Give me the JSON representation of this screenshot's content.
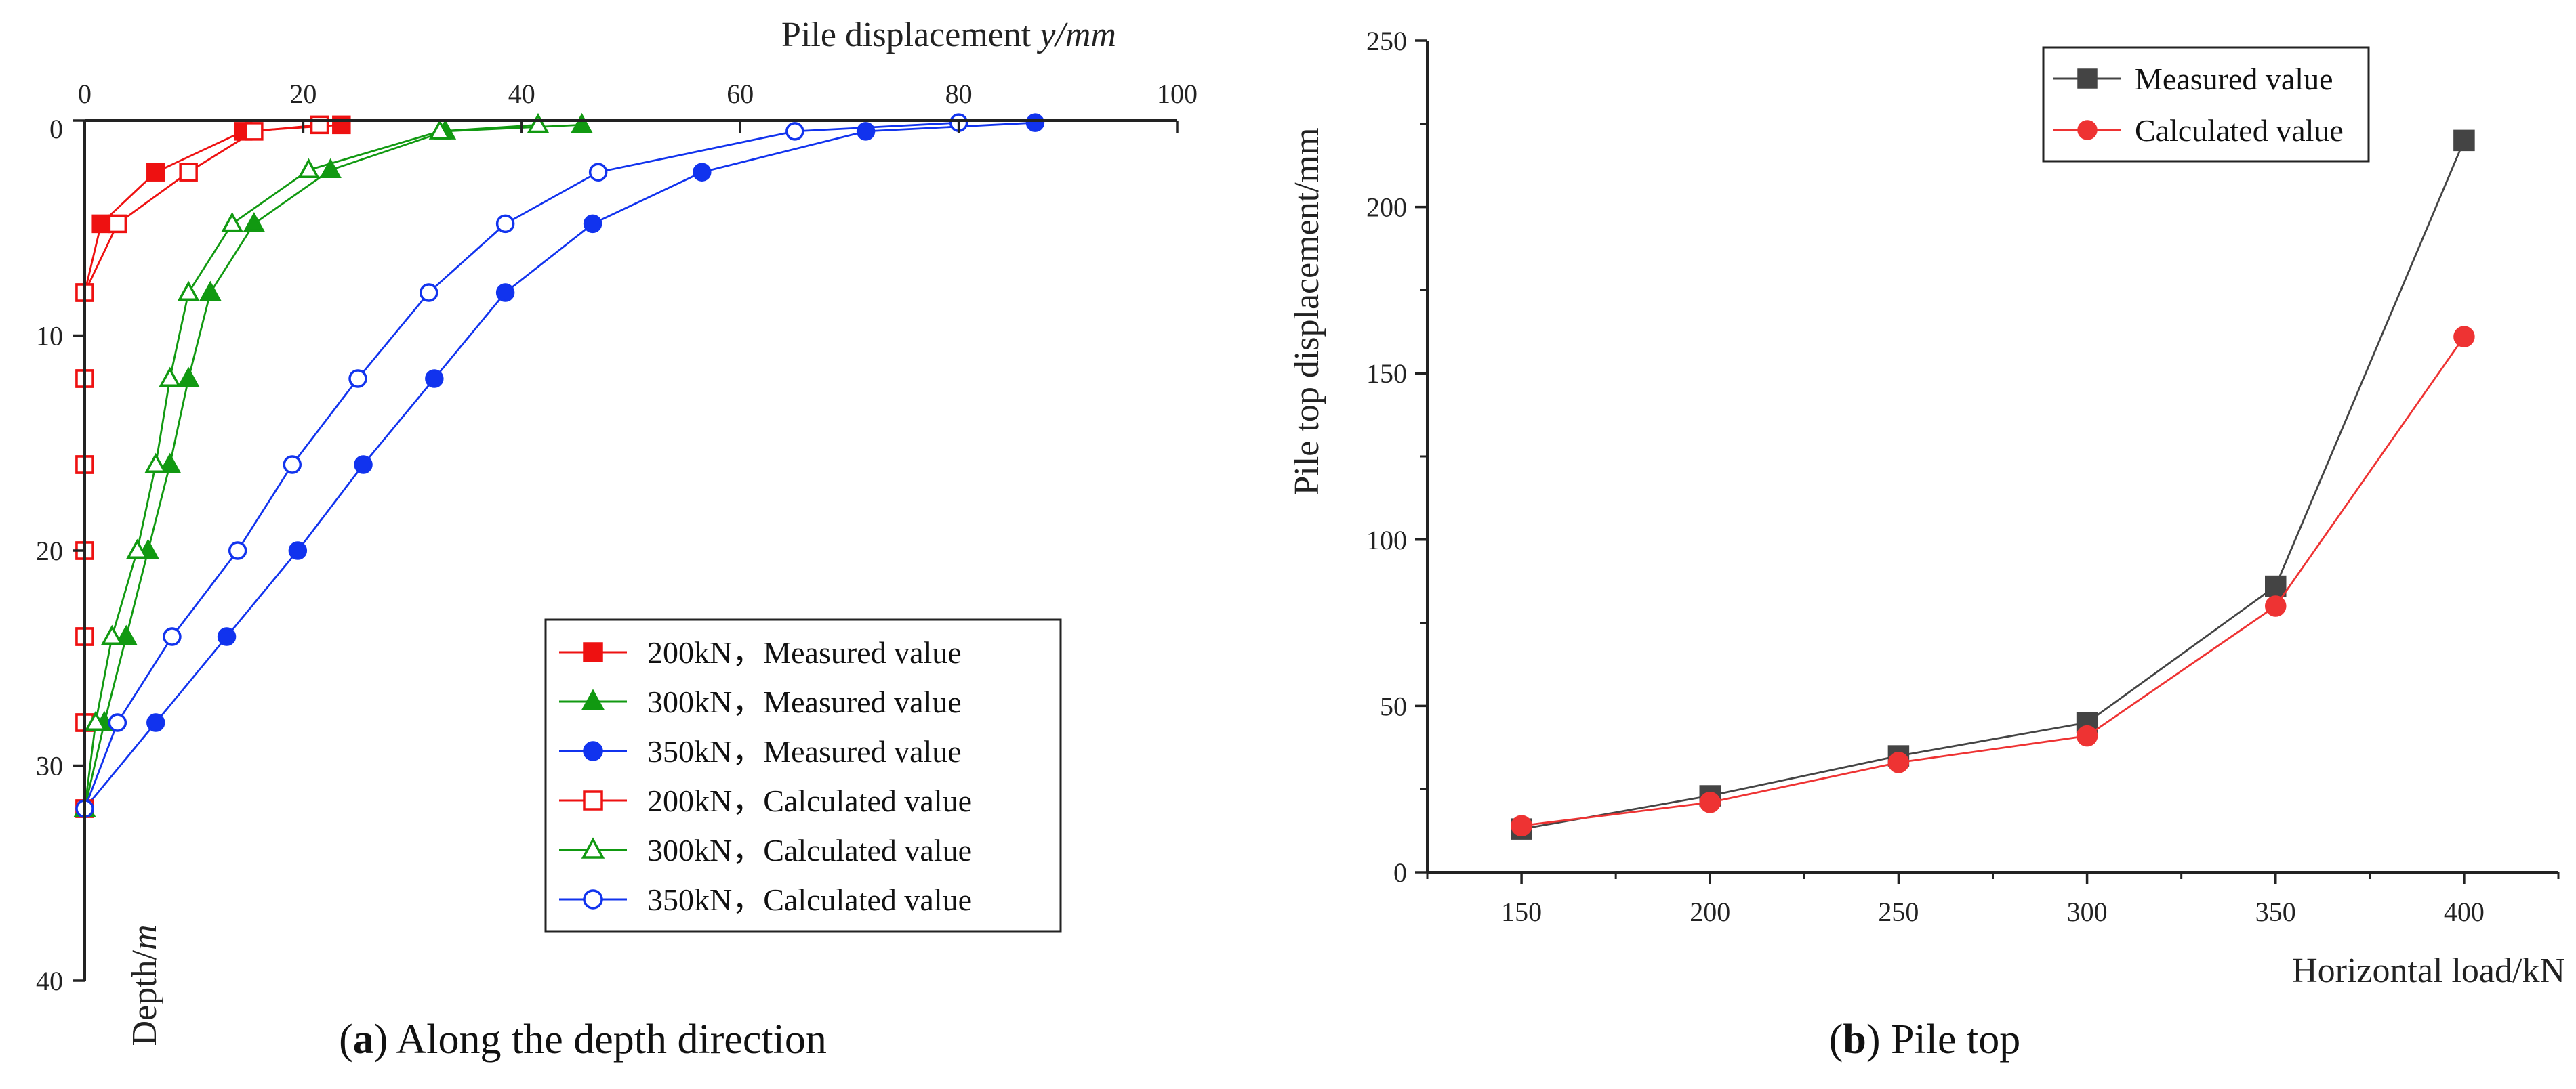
{
  "chart_data": [
    {
      "type": "line",
      "panel": "a",
      "caption": {
        "label": "a",
        "text": "Along the depth direction"
      },
      "title": "",
      "xlabel": "Pile displacement ",
      "xlabel_var": "y",
      "xlabel_unit": "/mm",
      "ylabel": "Depth/",
      "ylabel_unit": "m",
      "xlim": [
        0,
        100
      ],
      "ylim": [
        0,
        40
      ],
      "x_axis_position": "top",
      "y_inverted": true,
      "xticks": [
        0,
        20,
        40,
        60,
        80,
        100
      ],
      "yticks": [
        0,
        10,
        20,
        30,
        40
      ],
      "legend_position": "bottom-right",
      "series": [
        {
          "name": "200kN，Measured value",
          "color": "#ee1111",
          "marker": "square",
          "filled": true,
          "points": [
            [
              23.5,
              0.2
            ],
            [
              14.5,
              0.5
            ],
            [
              6.5,
              2.4
            ],
            [
              1.5,
              4.8
            ],
            [
              0,
              8
            ],
            [
              0,
              12
            ],
            [
              0,
              16
            ],
            [
              0,
              20
            ],
            [
              0,
              24
            ],
            [
              0,
              28
            ],
            [
              0,
              32
            ]
          ]
        },
        {
          "name": "300kN，Measured value",
          "color": "#119911",
          "marker": "triangle",
          "filled": true,
          "points": [
            [
              45.5,
              0.2
            ],
            [
              33,
              0.5
            ],
            [
              22.5,
              2.3
            ],
            [
              15.5,
              4.8
            ],
            [
              11.5,
              8
            ],
            [
              9.5,
              12
            ],
            [
              7.8,
              16
            ],
            [
              5.8,
              20
            ],
            [
              3.8,
              24
            ],
            [
              1.8,
              28
            ],
            [
              0,
              32
            ]
          ]
        },
        {
          "name": "350kN，Measured value",
          "color": "#1133ee",
          "marker": "circle",
          "filled": true,
          "points": [
            [
              87,
              0.1
            ],
            [
              71.5,
              0.5
            ],
            [
              56.5,
              2.4
            ],
            [
              46.5,
              4.8
            ],
            [
              38.5,
              8
            ],
            [
              32,
              12
            ],
            [
              25.5,
              16
            ],
            [
              19.5,
              20
            ],
            [
              13,
              24
            ],
            [
              6.5,
              28
            ],
            [
              0,
              32
            ]
          ]
        },
        {
          "name": "200kN，Calculated value",
          "color": "#ee1111",
          "marker": "square",
          "filled": false,
          "points": [
            [
              21.5,
              0.2
            ],
            [
              15.5,
              0.5
            ],
            [
              9.5,
              2.4
            ],
            [
              3,
              4.8
            ],
            [
              0,
              8
            ],
            [
              0,
              12
            ],
            [
              0,
              16
            ],
            [
              0,
              20
            ],
            [
              0,
              24
            ],
            [
              0,
              28
            ],
            [
              0,
              32
            ]
          ]
        },
        {
          "name": "300kN，Calculated value",
          "color": "#119911",
          "marker": "triangle",
          "filled": false,
          "points": [
            [
              41.5,
              0.2
            ],
            [
              32.5,
              0.5
            ],
            [
              20.5,
              2.3
            ],
            [
              13.5,
              4.8
            ],
            [
              9.5,
              8
            ],
            [
              7.8,
              12
            ],
            [
              6.5,
              16
            ],
            [
              4.8,
              20
            ],
            [
              2.5,
              24
            ],
            [
              1,
              28
            ],
            [
              0,
              32
            ]
          ]
        },
        {
          "name": "350kN，Calculated value",
          "color": "#1133ee",
          "marker": "circle",
          "filled": false,
          "points": [
            [
              80,
              0.1
            ],
            [
              65,
              0.5
            ],
            [
              47,
              2.4
            ],
            [
              38.5,
              4.8
            ],
            [
              31.5,
              8
            ],
            [
              25,
              12
            ],
            [
              19,
              16
            ],
            [
              14,
              20
            ],
            [
              8,
              24
            ],
            [
              3,
              28
            ],
            [
              0,
              32
            ]
          ]
        }
      ]
    },
    {
      "type": "line",
      "panel": "b",
      "caption": {
        "label": "b",
        "text": "Pile top"
      },
      "title": "",
      "xlabel": "Horizontal load/kN",
      "ylabel": "Pile top displacement/mm",
      "xlim": [
        125,
        425
      ],
      "ylim": [
        0,
        250
      ],
      "xticks": [
        150,
        200,
        250,
        300,
        350,
        400
      ],
      "yticks": [
        0,
        50,
        100,
        150,
        200,
        250
      ],
      "legend_position": "top-right",
      "categories": [
        150,
        200,
        250,
        300,
        350,
        400
      ],
      "series": [
        {
          "name": "Measured value",
          "color": "#444444",
          "marker": "square",
          "filled": true,
          "x": [
            150,
            200,
            250,
            300,
            350,
            400
          ],
          "values": [
            13,
            23,
            35,
            45,
            86,
            220
          ]
        },
        {
          "name": "Calculated value",
          "color": "#ee3333",
          "marker": "circle",
          "filled": true,
          "x": [
            150,
            200,
            250,
            300,
            350,
            400
          ],
          "values": [
            14,
            21,
            33,
            41,
            80,
            161
          ]
        }
      ]
    }
  ]
}
